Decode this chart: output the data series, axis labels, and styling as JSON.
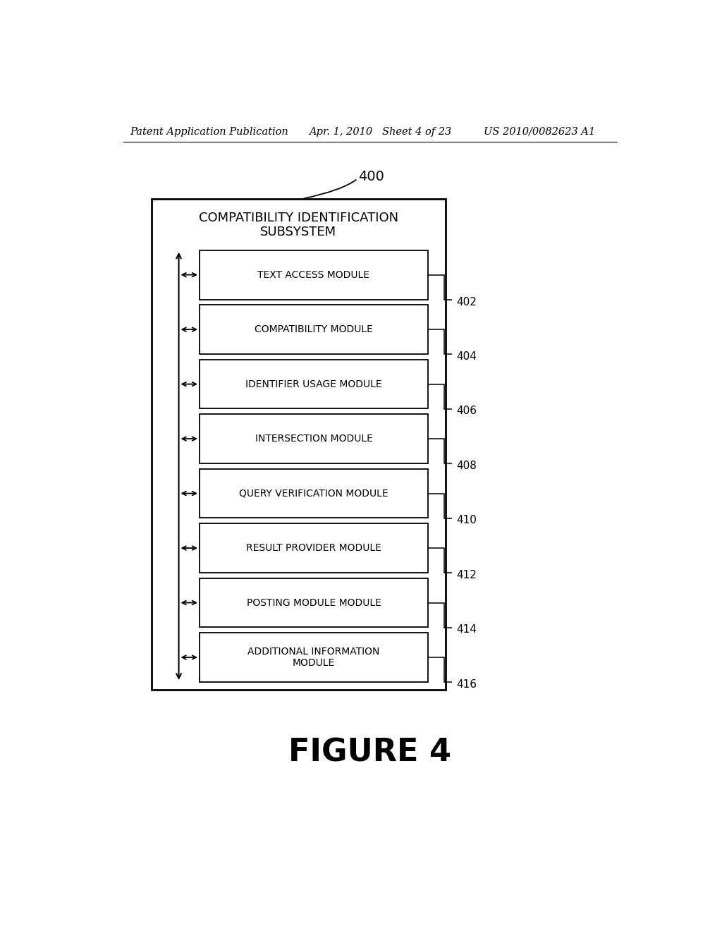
{
  "background_color": "#ffffff",
  "header_text_left": "Patent Application Publication",
  "header_text_mid": "Apr. 1, 2010   Sheet 4 of 23",
  "header_text_right": "US 2010/0082623 A1",
  "figure_label": "FIGURE 4",
  "diagram_label": "400",
  "outer_box_title_line1": "COMPATIBILITY IDENTIFICATION",
  "outer_box_title_line2": "SUBSYSTEM",
  "modules": [
    {
      "label": "TEXT ACCESS MODULE",
      "ref": "402"
    },
    {
      "label": "COMPATIBILITY MODULE",
      "ref": "404"
    },
    {
      "label": "IDENTIFIER USAGE MODULE",
      "ref": "406"
    },
    {
      "label": "INTERSECTION MODULE",
      "ref": "408"
    },
    {
      "label": "QUERY VERIFICATION MODULE",
      "ref": "410"
    },
    {
      "label": "RESULT PROVIDER MODULE",
      "ref": "412"
    },
    {
      "label": "POSTING MODULE MODULE",
      "ref": "414"
    },
    {
      "label": "ADDITIONAL INFORMATION\nMODULE",
      "ref": "416"
    }
  ],
  "text_color": "#000000",
  "header_fontsize": 10.5,
  "title_fontsize": 13,
  "module_fontsize": 10,
  "figure_label_fontsize": 32,
  "ref_fontsize": 11,
  "diagram_label_fontsize": 14
}
